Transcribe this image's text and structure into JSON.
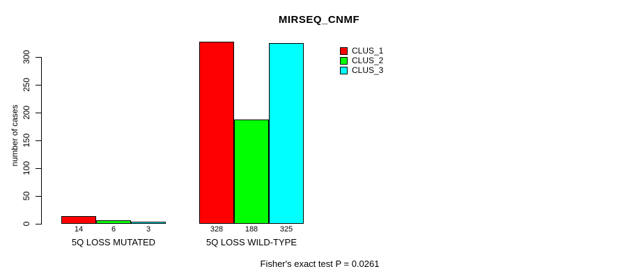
{
  "chart_data": {
    "type": "bar",
    "title": "MIRSEQ_CNMF",
    "ylabel": "number of cases",
    "xlabel": "",
    "categories": [
      "5Q LOSS MUTATED",
      "5Q LOSS WILD-TYPE"
    ],
    "series": [
      {
        "name": "CLUS_1",
        "color": "#FF0000",
        "values": [
          14,
          328
        ]
      },
      {
        "name": "CLUS_2",
        "color": "#00FF00",
        "values": [
          6,
          188
        ]
      },
      {
        "name": "CLUS_3",
        "color": "#00FFFF",
        "values": [
          3,
          325
        ]
      }
    ],
    "yticks": [
      0,
      50,
      100,
      150,
      200,
      250,
      300
    ],
    "ylim": [
      0,
      330
    ],
    "grid": false,
    "legend_position": "top-right",
    "bar_border_color": "#000000",
    "annotation": "Fisher's exact test P = 0.0261"
  }
}
